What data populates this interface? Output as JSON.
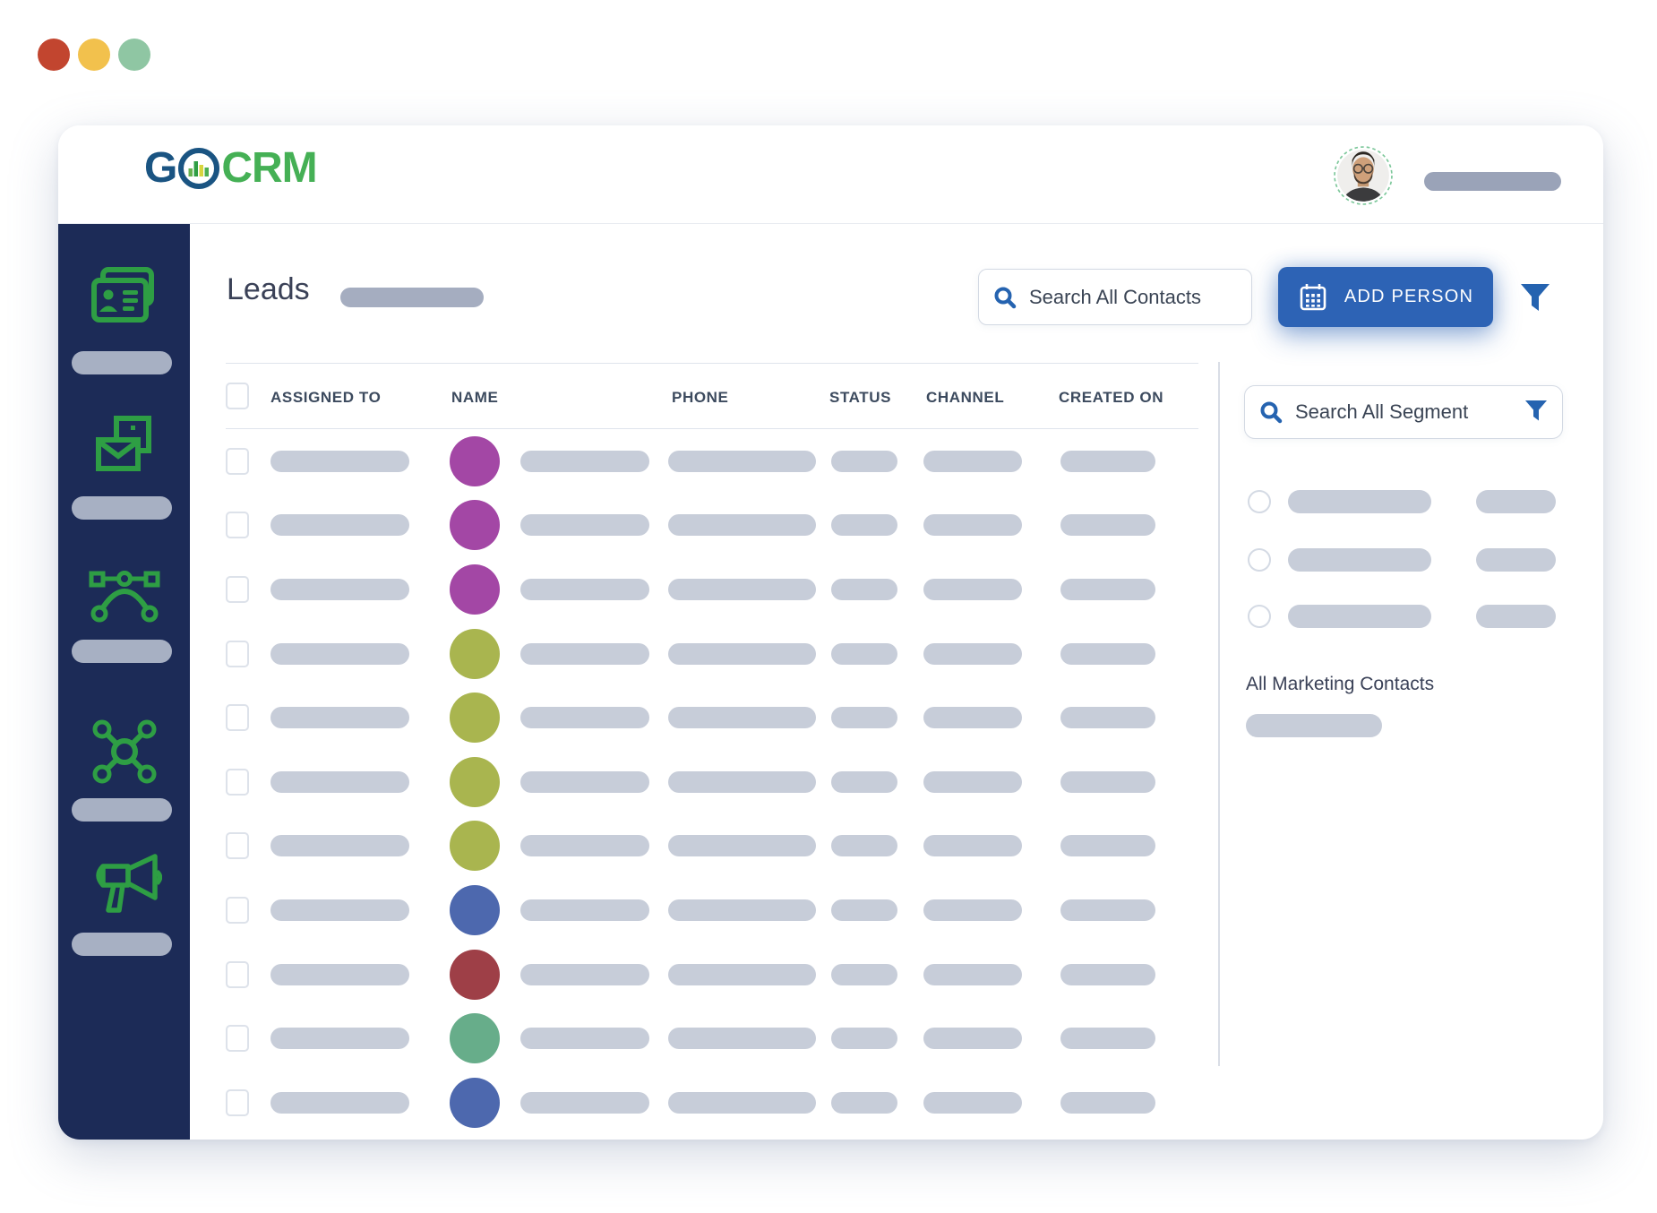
{
  "window": {
    "traffic_lights": [
      {
        "name": "close",
        "color": "#c2452f"
      },
      {
        "name": "minimize",
        "color": "#f2c14d"
      },
      {
        "name": "expand",
        "color": "#8fc6a3"
      }
    ]
  },
  "brand": {
    "logo_part1": "G",
    "logo_part2": "CRM",
    "blue": "#1a5482",
    "green": "#45b055"
  },
  "sidebar": {
    "background": "#1c2b57",
    "icon_color": "#2e9e44",
    "items": [
      {
        "icon": "contact-cards-icon"
      },
      {
        "icon": "mail-icon"
      },
      {
        "icon": "vector-curve-icon"
      },
      {
        "icon": "network-icon"
      },
      {
        "icon": "megaphone-icon"
      }
    ]
  },
  "main": {
    "title": "Leads",
    "search": {
      "placeholder": "Search All Contacts"
    },
    "add_person": {
      "label": "ADD PERSON",
      "color": "#2d63b5"
    },
    "table": {
      "columns": [
        "ASSIGNED TO",
        "NAME",
        "PHONE",
        "STATUS",
        "CHANNEL",
        "CREATED ON"
      ],
      "rows": [
        {
          "avatar_color": "#a347a5"
        },
        {
          "avatar_color": "#a347a5"
        },
        {
          "avatar_color": "#a347a5"
        },
        {
          "avatar_color": "#a9b54f"
        },
        {
          "avatar_color": "#a9b54f"
        },
        {
          "avatar_color": "#a9b54f"
        },
        {
          "avatar_color": "#a9b54f"
        },
        {
          "avatar_color": "#4d68ae"
        },
        {
          "avatar_color": "#9e3f47"
        },
        {
          "avatar_color": "#67ad8a"
        },
        {
          "avatar_color": "#4d68ae"
        }
      ]
    }
  },
  "right_panel": {
    "search": {
      "placeholder": "Search All Segment"
    },
    "segment_rows": [
      {
        "selected": false
      },
      {
        "selected": false
      },
      {
        "selected": false
      }
    ],
    "footer": {
      "label": "All Marketing Contacts"
    }
  }
}
